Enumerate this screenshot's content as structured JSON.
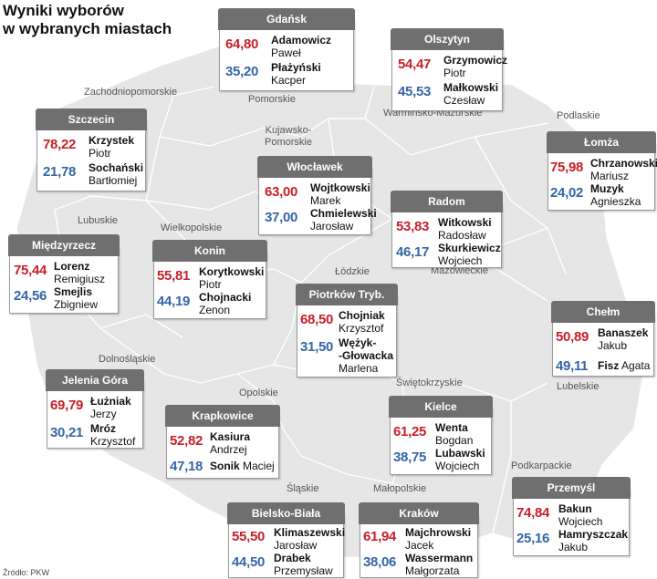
{
  "title": {
    "line1": "Wyniki wyborów",
    "line2": "w wybranych miastach"
  },
  "source": "Źródło: PKW",
  "colors": {
    "winner": "#c8202a",
    "second": "#3565a6",
    "header": "#6f6f6f",
    "border": "#8a8a8a"
  },
  "regions": {
    "zachodniopomorskie": "Zachodniopomorskie",
    "pomorskie": "Pomorskie",
    "warminsko": "Warmińsko-Mazurskie",
    "podlaskie": "Podlaskie",
    "kujawsko1": "Kujawsko-",
    "kujawsko2": "Pomorskie",
    "lubuskie": "Lubuskie",
    "wielkopolskie": "Wielkopolskie",
    "lodzkie": "Łódzkie",
    "mazowieckie": "Mazowieckie",
    "dolnoslaskie": "Dolnośląskie",
    "opolskie": "Opolskie",
    "swietokrzyskie": "Świętokrzyskie",
    "lubelskie": "Lubelskie",
    "slaskie": "Śląskie",
    "malopolskie": "Małopolskie",
    "podkarpackie": "Podkarpackie"
  },
  "cities": {
    "gdansk": {
      "name": "Gdańsk",
      "c1": {
        "pct": "64,80",
        "last": "Adamowicz",
        "first": "Paweł"
      },
      "c2": {
        "pct": "35,20",
        "last": "Płażyński",
        "first": "Kacper"
      }
    },
    "olsztyn": {
      "name": "Olszytyn",
      "c1": {
        "pct": "54,47",
        "last": "Grzymowicz",
        "first": "Piotr"
      },
      "c2": {
        "pct": "45,53",
        "last": "Małkowski",
        "first": "Czesław"
      }
    },
    "szczecin": {
      "name": "Szczecin",
      "c1": {
        "pct": "78,22",
        "last": "Krzystek",
        "first": "Piotr"
      },
      "c2": {
        "pct": "21,78",
        "last": "Sochański",
        "first": "Bartłomiej"
      }
    },
    "lomza": {
      "name": "Łomża",
      "c1": {
        "pct": "75,98",
        "last": "Chrzanowski",
        "first": "Mariusz"
      },
      "c2": {
        "pct": "24,02",
        "last": "Muzyk",
        "first": "Agnieszka"
      }
    },
    "wloclawek": {
      "name": "Włocławek",
      "c1": {
        "pct": "63,00",
        "last": "Wojtkowski",
        "first": "Marek"
      },
      "c2": {
        "pct": "37,00",
        "last": "Chmielewski",
        "first": "Jarosław"
      }
    },
    "radom": {
      "name": "Radom",
      "c1": {
        "pct": "53,83",
        "last": "Witkowski",
        "first": "Radosław"
      },
      "c2": {
        "pct": "46,17",
        "last": "Skurkiewicz",
        "first": "Wojciech"
      }
    },
    "miedzyrzecz": {
      "name": "Międzyrzecz",
      "c1": {
        "pct": "75,44",
        "last": "Lorenz",
        "first": "Remigiusz"
      },
      "c2": {
        "pct": "24,56",
        "last": "Smejlis",
        "first": "Zbigniew"
      }
    },
    "konin": {
      "name": "Konin",
      "c1": {
        "pct": "55,81",
        "last": "Korytkowski",
        "first": "Piotr"
      },
      "c2": {
        "pct": "44,19",
        "last": "Chojnacki",
        "first": "Zenon"
      }
    },
    "piotrkow": {
      "name": "Piotrków Tryb.",
      "c1": {
        "pct": "68,50",
        "last": "Chojniak",
        "first": "Krzysztof"
      },
      "c2": {
        "pct": "31,50",
        "last": "Wężyk-",
        "last2": "-Głowacka",
        "first": "Marlena"
      }
    },
    "chelm": {
      "name": "Chełm",
      "c1": {
        "pct": "50,89",
        "last": "Banaszek",
        "first": "Jakub"
      },
      "c2": {
        "pct": "49,11",
        "last": "Fisz",
        "first": "Agata"
      }
    },
    "jelenia": {
      "name": "Jelenia Góra",
      "c1": {
        "pct": "69,79",
        "last": "Łużniak",
        "first": "Jerzy"
      },
      "c2": {
        "pct": "30,21",
        "last": "Mróz",
        "first": "Krzysztof"
      }
    },
    "krapkowice": {
      "name": "Krapkowice",
      "c1": {
        "pct": "52,82",
        "last": "Kasiura",
        "first": "Andrzej"
      },
      "c2": {
        "pct": "47,18",
        "last": "Sonik",
        "first": "Maciej"
      }
    },
    "kielce": {
      "name": "Kielce",
      "c1": {
        "pct": "61,25",
        "last": "Wenta",
        "first": "Bogdan"
      },
      "c2": {
        "pct": "38,75",
        "last": "Lubawski",
        "first": "Wojciech"
      }
    },
    "przemysl": {
      "name": "Przemyśl",
      "c1": {
        "pct": "74,84",
        "last": "Bakun",
        "first": "Wojciech"
      },
      "c2": {
        "pct": "25,16",
        "last": "Hamryszczak",
        "first": "Jakub"
      }
    },
    "bielsko": {
      "name": "Bielsko-Biała",
      "c1": {
        "pct": "55,50",
        "last": "Klimaszewski",
        "first": "Jarosław"
      },
      "c2": {
        "pct": "44,50",
        "last": "Drabek",
        "first": "Przemysław"
      }
    },
    "krakow": {
      "name": "Kraków",
      "c1": {
        "pct": "61,94",
        "last": "Majchrowski",
        "first": "Jacek"
      },
      "c2": {
        "pct": "38,06",
        "last": "Wassermann",
        "first": "Małgorzata"
      }
    }
  }
}
